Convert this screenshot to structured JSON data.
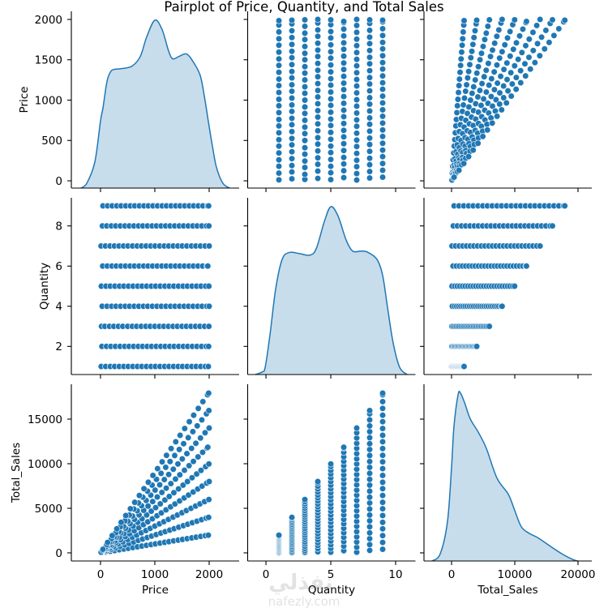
{
  "title": "Pairplot of Price, Quantity, and Total Sales",
  "watermark": {
    "arabic": "نفذلي",
    "latin": "nafezly.com"
  },
  "colors": {
    "marker": "#1f77b4",
    "marker_edge": "#ffffff",
    "kde_line": "#1f77b4",
    "kde_fill": "#1f77b4",
    "kde_fill_opacity": 0.25,
    "axis": "#000000",
    "text": "#000000",
    "watermark": "#d9d9d9"
  },
  "chart_data": {
    "type": "scatter",
    "kind": "pairplot",
    "title": "Pairplot of Price, Quantity, and Total Sales",
    "diagonal_kind": "kde",
    "grid": false,
    "legend": "none",
    "variables": [
      {
        "name": "Price",
        "label": "Price",
        "xlim": [
          -537,
          2552
        ],
        "ylim": [
          -90,
          2100
        ],
        "xticks": [
          0,
          1000,
          2000
        ],
        "xtick_labels": [
          "0",
          "1000",
          "2000"
        ],
        "yticks": [
          0,
          500,
          1000,
          1500,
          2000
        ],
        "ytick_labels": [
          "0",
          "500",
          "1000",
          "1500",
          "2000"
        ]
      },
      {
        "name": "Quantity",
        "label": "Quantity",
        "xlim": [
          -1.41,
          11.53
        ],
        "ylim": [
          0.6,
          9.4
        ],
        "xticks": [
          0,
          5,
          10
        ],
        "xtick_labels": [
          "0",
          "5",
          "10"
        ],
        "yticks": [
          2,
          4,
          6,
          8
        ],
        "ytick_labels": [
          "2",
          "4",
          "6",
          "8"
        ]
      },
      {
        "name": "Total_Sales",
        "label": "Total_Sales",
        "xlim": [
          -4360,
          22180
        ],
        "ylim": [
          -910,
          18910
        ],
        "xticks": [
          0,
          10000,
          20000
        ],
        "xtick_labels": [
          "0",
          "10000",
          "20000"
        ],
        "yticks": [
          0,
          5000,
          10000,
          15000
        ],
        "ytick_labels": [
          "0",
          "5000",
          "10000",
          "15000"
        ]
      }
    ],
    "diagonal": [
      {
        "variable": "Price",
        "density_scale": "relative (peak = 1)",
        "points": [
          [
            -358,
            0
          ],
          [
            -250,
            0.03
          ],
          [
            -104,
            0.156
          ],
          [
            0,
            0.4
          ],
          [
            45,
            0.477
          ],
          [
            100,
            0.6
          ],
          [
            134,
            0.654
          ],
          [
            180,
            0.69
          ],
          [
            239,
            0.706
          ],
          [
            400,
            0.712
          ],
          [
            582,
            0.727
          ],
          [
            731,
            0.783
          ],
          [
            850,
            0.9
          ],
          [
            1000,
            1.0
          ],
          [
            1134,
            0.944
          ],
          [
            1250,
            0.82
          ],
          [
            1328,
            0.77
          ],
          [
            1450,
            0.785
          ],
          [
            1582,
            0.799
          ],
          [
            1700,
            0.755
          ],
          [
            1836,
            0.67
          ],
          [
            1920,
            0.53
          ],
          [
            1985,
            0.397
          ],
          [
            2060,
            0.25
          ],
          [
            2134,
            0.124
          ],
          [
            2250,
            0.03
          ],
          [
            2373,
            0
          ]
        ]
      },
      {
        "variable": "Quantity",
        "density_scale": "relative (peak = 1)",
        "points": [
          [
            -0.81,
            0
          ],
          [
            -0.3,
            0.015
          ],
          [
            -0.06,
            0.043
          ],
          [
            0.31,
            0.236
          ],
          [
            0.75,
            0.51
          ],
          [
            1.25,
            0.686
          ],
          [
            1.81,
            0.727
          ],
          [
            2.6,
            0.72
          ],
          [
            3.38,
            0.711
          ],
          [
            3.88,
            0.75
          ],
          [
            4.5,
            0.91
          ],
          [
            5.0,
            1.0
          ],
          [
            5.56,
            0.944
          ],
          [
            6.19,
            0.8
          ],
          [
            6.69,
            0.735
          ],
          [
            7.3,
            0.735
          ],
          [
            7.81,
            0.73
          ],
          [
            8.56,
            0.686
          ],
          [
            9.0,
            0.59
          ],
          [
            9.38,
            0.397
          ],
          [
            9.81,
            0.188
          ],
          [
            10.31,
            0.043
          ],
          [
            10.88,
            0
          ]
        ]
      },
      {
        "variable": "Total_Sales",
        "density_scale": "relative (peak = 1)",
        "points": [
          [
            -3080,
            0
          ],
          [
            -1790,
            0.043
          ],
          [
            -640,
            0.236
          ],
          [
            0,
            0.558
          ],
          [
            380,
            0.8
          ],
          [
            1030,
            0.99
          ],
          [
            1410,
            1.0
          ],
          [
            2050,
            0.944
          ],
          [
            2950,
            0.847
          ],
          [
            4230,
            0.767
          ],
          [
            5510,
            0.67
          ],
          [
            7180,
            0.494
          ],
          [
            8980,
            0.397
          ],
          [
            10000,
            0.3
          ],
          [
            11030,
            0.204
          ],
          [
            12310,
            0.164
          ],
          [
            13590,
            0.14
          ],
          [
            15770,
            0.084
          ],
          [
            17440,
            0.043
          ],
          [
            19230,
            0.008
          ],
          [
            20000,
            0
          ]
        ]
      }
    ],
    "groups": [
      {
        "Quantity": 1,
        "Price": [
          12,
          95,
          180,
          260,
          345,
          430,
          510,
          595,
          680,
          760,
          845,
          930,
          1010,
          1095,
          1180,
          1260,
          1345,
          1430,
          1510,
          1595,
          1680,
          1760,
          1845,
          1930,
          1985
        ],
        "Total_Sales": [
          12,
          95,
          180,
          260,
          345,
          430,
          510,
          595,
          680,
          760,
          845,
          930,
          1010,
          1095,
          1180,
          1260,
          1345,
          1430,
          1510,
          1595,
          1680,
          1760,
          1845,
          1930,
          1985
        ]
      },
      {
        "Quantity": 2,
        "Price": [
          25,
          110,
          190,
          275,
          360,
          445,
          525,
          610,
          695,
          775,
          860,
          940,
          1025,
          1110,
          1190,
          1275,
          1355,
          1440,
          1525,
          1605,
          1690,
          1775,
          1860,
          1945,
          1990
        ],
        "Total_Sales": [
          50,
          220,
          380,
          550,
          720,
          890,
          1050,
          1220,
          1390,
          1550,
          1720,
          1880,
          2050,
          2220,
          2380,
          2550,
          2710,
          2880,
          3050,
          3210,
          3380,
          3550,
          3720,
          3890,
          3980
        ]
      },
      {
        "Quantity": 3,
        "Price": [
          18,
          80,
          165,
          245,
          330,
          410,
          500,
          585,
          665,
          750,
          835,
          915,
          1000,
          1085,
          1165,
          1250,
          1335,
          1415,
          1500,
          1580,
          1665,
          1750,
          1830,
          1915,
          1995
        ],
        "Total_Sales": [
          54,
          240,
          495,
          735,
          990,
          1230,
          1500,
          1755,
          1995,
          2250,
          2505,
          2745,
          3000,
          3255,
          3495,
          3750,
          4005,
          4245,
          4500,
          4740,
          4995,
          5250,
          5490,
          5745,
          5985
        ]
      },
      {
        "Quantity": 4,
        "Price": [
          30,
          120,
          205,
          285,
          370,
          455,
          535,
          620,
          705,
          790,
          870,
          955,
          1040,
          1120,
          1205,
          1290,
          1370,
          1455,
          1540,
          1620,
          1705,
          1790,
          1870,
          1955,
          2000
        ],
        "Total_Sales": [
          120,
          480,
          820,
          1140,
          1480,
          1820,
          2140,
          2480,
          2820,
          3160,
          3480,
          3820,
          4160,
          4480,
          4820,
          5160,
          5480,
          5820,
          6160,
          6480,
          6820,
          7160,
          7480,
          7820,
          8000
        ]
      },
      {
        "Quantity": 5,
        "Price": [
          15,
          100,
          180,
          265,
          350,
          430,
          515,
          600,
          685,
          765,
          850,
          935,
          1015,
          1100,
          1185,
          1265,
          1350,
          1435,
          1520,
          1600,
          1685,
          1770,
          1850,
          1935,
          1995
        ],
        "Total_Sales": [
          75,
          500,
          900,
          1325,
          1750,
          2150,
          2575,
          3000,
          3425,
          3825,
          4250,
          4675,
          5075,
          5500,
          5925,
          6325,
          6750,
          7175,
          7600,
          8000,
          8425,
          8850,
          9250,
          9675,
          9975
        ]
      },
      {
        "Quantity": 6,
        "Price": [
          40,
          125,
          210,
          290,
          375,
          460,
          545,
          625,
          710,
          795,
          875,
          960,
          1045,
          1130,
          1210,
          1295,
          1380,
          1460,
          1545,
          1630,
          1710,
          1795,
          1880,
          1960,
          1975
        ],
        "Total_Sales": [
          240,
          750,
          1260,
          1740,
          2250,
          2760,
          3270,
          3750,
          4260,
          4770,
          5250,
          5760,
          6270,
          6780,
          7260,
          7770,
          8280,
          8760,
          9270,
          9780,
          10260,
          10770,
          11280,
          11760,
          11850
        ]
      },
      {
        "Quantity": 7,
        "Price": [
          10,
          90,
          175,
          255,
          340,
          425,
          505,
          590,
          675,
          755,
          840,
          925,
          1005,
          1090,
          1175,
          1255,
          1340,
          1425,
          1505,
          1590,
          1675,
          1755,
          1840,
          1925,
          2000
        ],
        "Total_Sales": [
          70,
          630,
          1225,
          1785,
          2380,
          2975,
          3535,
          4130,
          4725,
          5285,
          5880,
          6475,
          7035,
          7630,
          8225,
          8785,
          9380,
          9975,
          10535,
          11130,
          11725,
          12285,
          12880,
          13475,
          14000
        ]
      },
      {
        "Quantity": 8,
        "Price": [
          35,
          115,
          200,
          280,
          365,
          450,
          530,
          615,
          700,
          780,
          865,
          950,
          1030,
          1115,
          1200,
          1280,
          1365,
          1450,
          1530,
          1615,
          1700,
          1780,
          1865,
          1950,
          1995
        ],
        "Total_Sales": [
          280,
          920,
          1600,
          2240,
          2920,
          3600,
          4240,
          4920,
          5600,
          6240,
          6920,
          7600,
          8240,
          8920,
          9600,
          10240,
          10920,
          11600,
          12240,
          12920,
          13600,
          14240,
          14920,
          15600,
          15960
        ]
      },
      {
        "Quantity": 9,
        "Price": [
          45,
          130,
          215,
          300,
          380,
          465,
          550,
          630,
          715,
          800,
          880,
          965,
          1050,
          1135,
          1215,
          1300,
          1385,
          1465,
          1550,
          1635,
          1715,
          1800,
          1885,
          1970,
          1990
        ],
        "Total_Sales": [
          405,
          1170,
          1935,
          2700,
          3420,
          4185,
          4950,
          5670,
          6435,
          7200,
          7920,
          8685,
          9450,
          10215,
          10935,
          11700,
          12465,
          13185,
          13950,
          14715,
          15435,
          16200,
          16965,
          17730,
          17910
        ]
      }
    ]
  }
}
